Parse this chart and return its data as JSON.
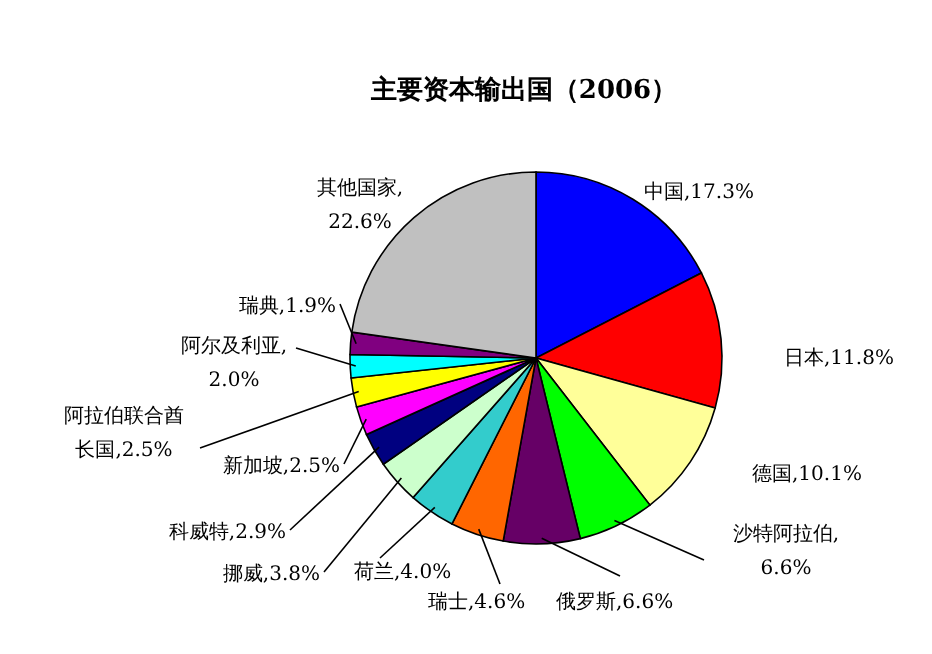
{
  "chart_data": {
    "type": "pie",
    "title": "主要资本输出国（2006）",
    "categories": [
      "中国",
      "日本",
      "德国",
      "沙特阿拉伯",
      "俄罗斯",
      "瑞士",
      "荷兰",
      "挪威",
      "科威特",
      "新加坡",
      "阿拉伯联合酋长国",
      "阿尔及利亚",
      "瑞典",
      "其他国家"
    ],
    "values": [
      17.3,
      11.8,
      10.1,
      6.6,
      6.6,
      4.6,
      4.0,
      3.8,
      2.9,
      2.5,
      2.5,
      2.0,
      1.9,
      22.6
    ],
    "value_labels": [
      ",17.3%",
      ",11.8%",
      ",10.1%",
      ",6.6%",
      ",6.6%",
      ",4.6%",
      ",4.0%",
      ",3.8%",
      ",2.9%",
      ",2.5%",
      ",2.5%",
      ",2.0%",
      ",1.9%",
      ",22.6%"
    ],
    "colors": [
      "#0000ff",
      "#ff0000",
      "#ffff99",
      "#00ff00",
      "#660066",
      "#ff6600",
      "#33cccc",
      "#ccffcc",
      "#000080",
      "#ff00ff",
      "#ffff00",
      "#00ffff",
      "#800080",
      "#c0c0c0"
    ]
  }
}
